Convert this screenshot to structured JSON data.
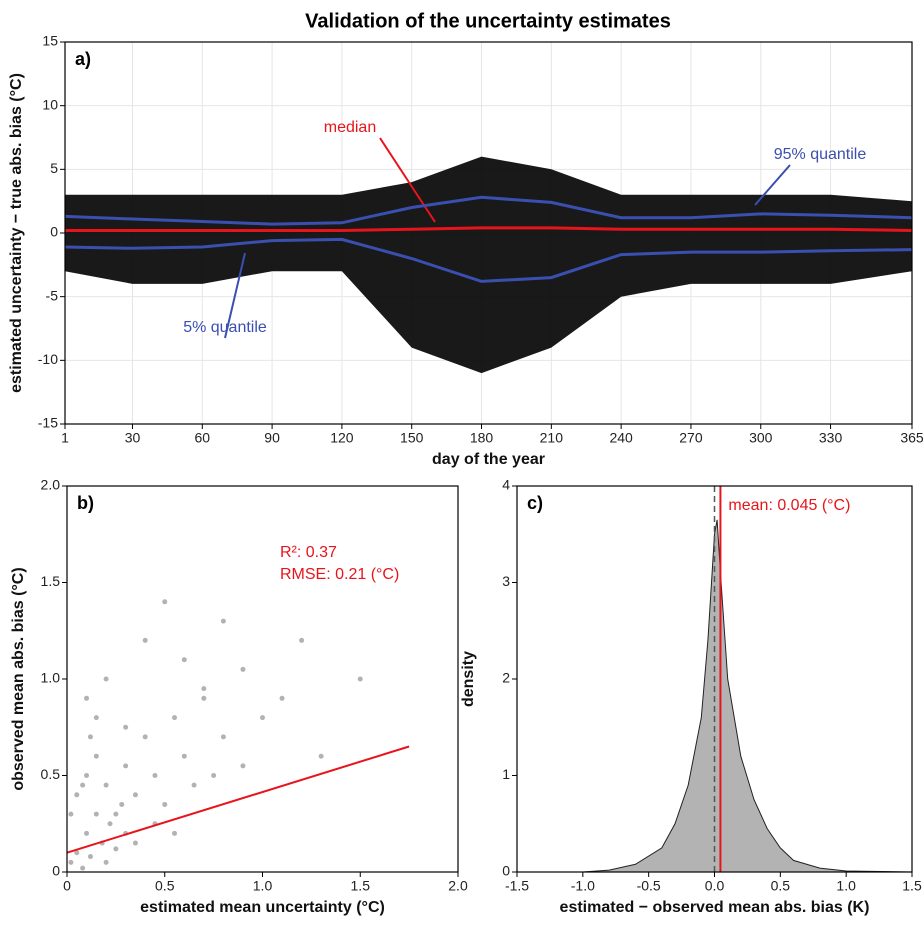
{
  "title": "Validation of the uncertainty estimates",
  "chart_data": [
    {
      "type": "line",
      "label": "a)",
      "xlabel": "day of the year",
      "ylabel": "estimated uncertainty − true abs. bias (°C)",
      "xlim": [
        1,
        365
      ],
      "ylim": [
        -15,
        15
      ],
      "xticks": [
        1,
        30,
        60,
        90,
        120,
        150,
        180,
        210,
        240,
        270,
        300,
        330,
        365
      ],
      "yticks": [
        -15,
        -10,
        -5,
        0,
        5,
        10,
        15
      ],
      "grid": true,
      "x": [
        1,
        30,
        60,
        90,
        120,
        150,
        180,
        210,
        240,
        270,
        300,
        330,
        365
      ],
      "band": {
        "color": "#000000",
        "high": [
          3,
          3,
          3,
          3,
          3,
          4,
          6,
          5,
          3,
          3,
          3,
          3,
          2.5
        ],
        "low": [
          -3,
          -4,
          -4,
          -3,
          -3,
          -9,
          -11,
          -9,
          -5,
          -4,
          -4,
          -4,
          -3
        ]
      },
      "series": [
        {
          "name": "median",
          "color": "#e8141b",
          "values": [
            0.2,
            0.2,
            0.2,
            0.2,
            0.2,
            0.3,
            0.4,
            0.4,
            0.3,
            0.3,
            0.3,
            0.3,
            0.2
          ]
        },
        {
          "name": "95% quantile",
          "color": "#3a4fb0",
          "values": [
            1.3,
            1.1,
            0.9,
            0.7,
            0.8,
            2.0,
            2.8,
            2.4,
            1.2,
            1.2,
            1.5,
            1.4,
            1.2
          ]
        },
        {
          "name": "5% quantile",
          "color": "#3a4fb0",
          "values": [
            -1.1,
            -1.2,
            -1.1,
            -0.6,
            -0.5,
            -2.0,
            -3.8,
            -3.5,
            -1.7,
            -1.5,
            -1.5,
            -1.4,
            -1.3
          ]
        }
      ]
    },
    {
      "type": "scatter",
      "label": "b)",
      "xlabel": "estimated mean uncertainty (°C)",
      "ylabel": "observed mean abs. bias (°C)",
      "xlim": [
        0,
        2
      ],
      "ylim": [
        0,
        2
      ],
      "xticks": [
        0,
        0.5,
        {
          "value": 1,
          "label": "1.0"
        },
        1.5,
        {
          "value": 2,
          "label": "2.0"
        }
      ],
      "yticks": [
        0,
        0.5,
        {
          "value": 1,
          "label": "1.0"
        },
        1.5,
        {
          "value": 2,
          "label": "2.0"
        }
      ],
      "points": {
        "color": "#000000",
        "x": [
          0.02,
          0.05,
          0.08,
          0.1,
          0.12,
          0.15,
          0.18,
          0.2,
          0.22,
          0.25,
          0.28,
          0.3,
          0.05,
          0.1,
          0.15,
          0.2,
          0.25,
          0.3,
          0.35,
          0.4,
          0.45,
          0.5,
          0.55,
          0.6,
          0.65,
          0.7,
          0.75,
          0.8,
          0.9,
          1.0,
          0.1,
          0.2,
          0.3,
          0.4,
          0.5,
          0.6,
          0.7,
          0.8,
          0.9,
          1.1,
          1.2,
          1.3,
          1.5,
          0.45,
          0.55,
          0.15,
          0.35,
          0.02,
          0.08,
          0.12
        ],
        "y": [
          0.05,
          0.1,
          0.02,
          0.2,
          0.08,
          0.3,
          0.15,
          0.05,
          0.25,
          0.12,
          0.35,
          0.2,
          0.4,
          0.5,
          0.6,
          0.45,
          0.3,
          0.55,
          0.4,
          0.7,
          0.5,
          0.35,
          0.8,
          0.6,
          0.45,
          0.9,
          0.5,
          0.7,
          0.55,
          0.8,
          0.9,
          1.0,
          0.75,
          1.2,
          1.4,
          1.1,
          0.95,
          1.3,
          1.05,
          0.9,
          1.2,
          0.6,
          1.0,
          0.25,
          0.2,
          0.8,
          0.15,
          0.3,
          0.45,
          0.7
        ]
      },
      "fit": {
        "color": "#e8141b",
        "x": [
          0,
          1.75
        ],
        "values": [
          0.1,
          0.65
        ]
      },
      "annotations": [
        "R²: 0.37",
        "RMSE: 0.21 (°C)"
      ],
      "annotation_color": "#e8141b"
    },
    {
      "type": "area",
      "label": "c)",
      "xlabel": "estimated − observed mean abs. bias (K)",
      "ylabel": "density",
      "xlim": [
        -1.5,
        1.5
      ],
      "ylim": [
        0,
        4
      ],
      "xticks": [
        -1.5,
        {
          "value": -1,
          "label": "-1.0"
        },
        -0.5,
        {
          "value": 0,
          "label": "0.0"
        },
        0.5,
        {
          "value": 1,
          "label": "1.0"
        },
        1.5
      ],
      "yticks": [
        0,
        1,
        2,
        3,
        4
      ],
      "x": [
        -1.5,
        -1,
        -0.8,
        -0.6,
        -0.4,
        -0.3,
        -0.2,
        -0.1,
        -0.05,
        0,
        0.02,
        0.05,
        0.1,
        0.2,
        0.3,
        0.4,
        0.5,
        0.6,
        0.8,
        1.0,
        1.5
      ],
      "values": [
        0,
        0,
        0.02,
        0.08,
        0.25,
        0.5,
        0.9,
        1.6,
        2.4,
        3.5,
        3.65,
        3.0,
        2.0,
        1.2,
        0.75,
        0.45,
        0.25,
        0.12,
        0.04,
        0.01,
        0
      ],
      "color": "#b3b3b3",
      "vlines": [
        {
          "value": 0,
          "color": "#555555",
          "dashed": true
        },
        {
          "value": 0.045,
          "color": "#e8141b",
          "label": "mean: 0.045 (°C)"
        }
      ]
    }
  ]
}
